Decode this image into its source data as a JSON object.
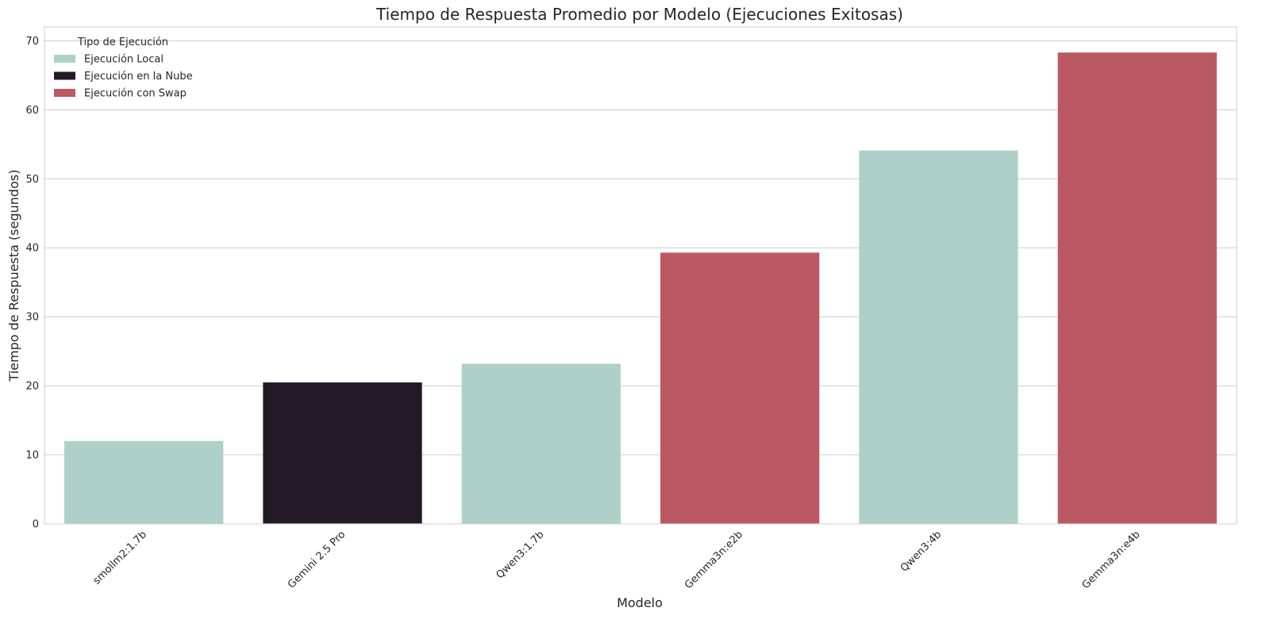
{
  "chart_data": {
    "type": "bar",
    "title": "Tiempo de Respuesta Promedio por Modelo (Ejecuciones Exitosas)",
    "xlabel": "Modelo",
    "ylabel": "Tiempo de Respuesta (segundos)",
    "ylim": [
      0,
      72
    ],
    "yticks": [
      0,
      10,
      20,
      30,
      40,
      50,
      60,
      70
    ],
    "grid": true,
    "categories": [
      "smollm2:1.7b",
      "Gemini 2.5 Pro",
      "Qwen3:1.7b",
      "Gemma3n:e2b",
      "Qwen3:4b",
      "Gemma3n:e4b"
    ],
    "values": [
      12.0,
      20.5,
      23.2,
      39.3,
      54.1,
      68.3
    ],
    "bar_groups": [
      "Ejecución Local",
      "Ejecución en la Nube",
      "Ejecución Local",
      "Ejecución con Swap",
      "Ejecución Local",
      "Ejecución con Swap"
    ],
    "legend": {
      "title": "Tipo de Ejecución",
      "placement": "top-left",
      "entries": [
        {
          "label": "Ejecución Local",
          "color": "#aed0c9"
        },
        {
          "label": "Ejecución en la Nube",
          "color": "#231927"
        },
        {
          "label": "Ejecución con Swap",
          "color": "#bb5963"
        }
      ]
    }
  }
}
